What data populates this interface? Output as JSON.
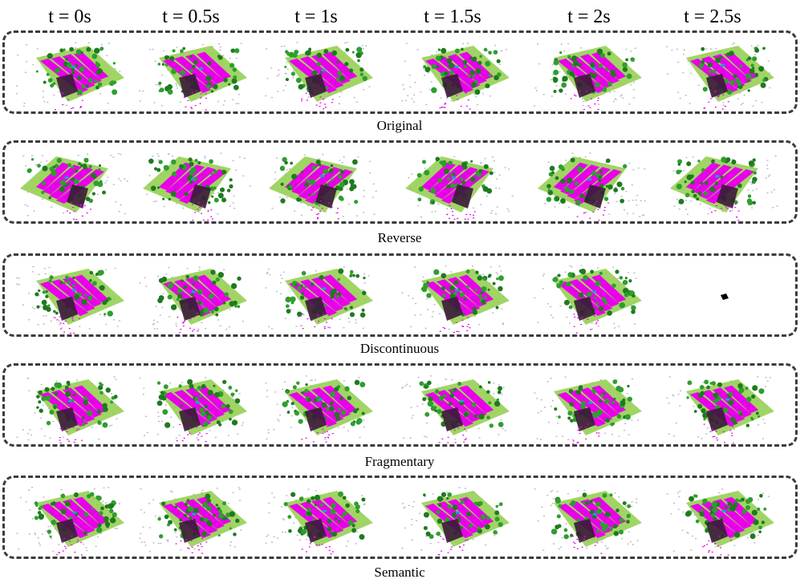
{
  "time_labels": [
    "t = 0s",
    "t = 0.5s",
    "t = 1s",
    "t = 1.5s",
    "t = 2s",
    "t = 2.5s"
  ],
  "rows": [
    {
      "label": "Original"
    },
    {
      "label": "Reverse"
    },
    {
      "label": "Discontinuous"
    },
    {
      "label": "Fragmentary"
    },
    {
      "label": "Semantic"
    }
  ],
  "colors": {
    "vegetation": "#2e9e2e",
    "vegetation_dark": "#1f7a1f",
    "road": "#e800e8",
    "terrain": "#8fce4a",
    "building": "#b8b8c8",
    "vehicle": "#1aa0d0",
    "unknown": "#3a1a3a"
  }
}
